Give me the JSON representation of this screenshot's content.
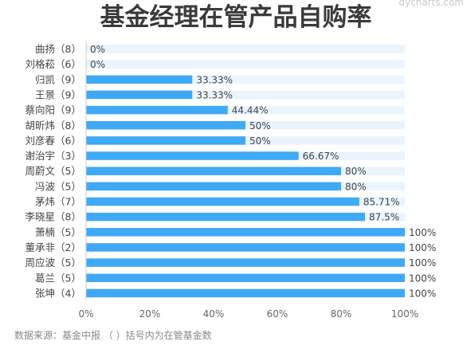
{
  "chart_data": {
    "type": "bar",
    "orientation": "horizontal",
    "title": "基金经理在管产品自购率",
    "categories": [
      "曲扬（8）",
      "刘格菘（6）",
      "归凯（9）",
      "王景（9）",
      "蔡向阳（9）",
      "胡昕炜（8）",
      "刘彦春（6）",
      "谢治宇（3）",
      "周蔚文（5）",
      "冯波（5）",
      "茅炜（7）",
      "李晓星（8）",
      "萧楠（5）",
      "董承非（2）",
      "周应波（5）",
      "葛兰（5）",
      "张坤（4）"
    ],
    "values": [
      0,
      0,
      33.33,
      33.33,
      44.44,
      50,
      50,
      66.67,
      80,
      80,
      85.71,
      87.5,
      100,
      100,
      100,
      100,
      100
    ],
    "value_labels": [
      "0%",
      "0%",
      "33.33%",
      "33.33%",
      "44.44%",
      "50%",
      "50%",
      "66.67%",
      "80%",
      "80%",
      "85.71%",
      "87.5%",
      "100%",
      "100%",
      "100%",
      "100%",
      "100%"
    ],
    "xlim": [
      0,
      100
    ],
    "x_ticks": [
      "0%",
      "20%",
      "40%",
      "60%",
      "80%",
      "100%"
    ],
    "grid": false,
    "colors": {
      "bar": "#3fa9f5",
      "track": "#e9f4fd",
      "axis": "#cccccc"
    },
    "source_note": "数据来源：基金中报 （ ）括号内为在管基金数",
    "watermark": "dycharts.com"
  }
}
